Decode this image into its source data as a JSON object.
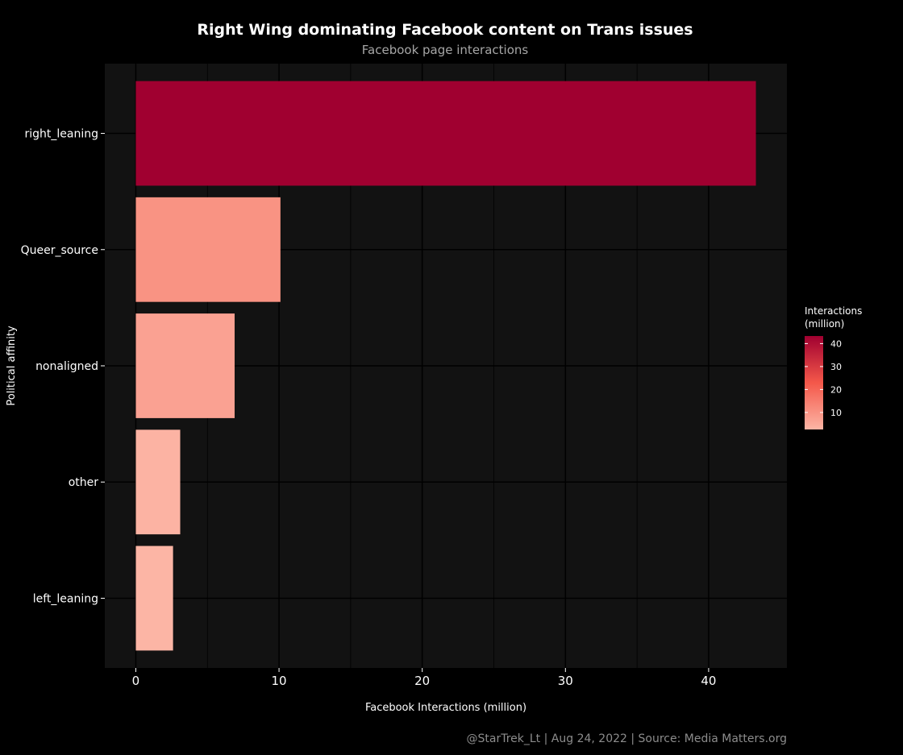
{
  "chart_data": {
    "type": "bar",
    "orientation": "horizontal",
    "title": "Right Wing dominating Facebook content on Trans issues",
    "subtitle": "Facebook page interactions",
    "xlabel": "Facebook Interactions (million)",
    "ylabel": "Political affinity",
    "caption": "@StarTrek_Lt | Aug 24, 2022 | Source: Media Matters.org",
    "categories": [
      "right_leaning",
      "Queer_source",
      "nonaligned",
      "other",
      "left_leaning"
    ],
    "values": [
      43.3,
      10.1,
      6.9,
      3.1,
      2.6
    ],
    "xlim": [
      -2.165,
      45.465
    ],
    "xticks": [
      0,
      10,
      20,
      30,
      40
    ],
    "grid": true,
    "legend": {
      "title_line1": "Interactions",
      "title_line2": "(million)",
      "ticks": [
        10,
        20,
        30,
        40
      ],
      "range": [
        2.6,
        43.3
      ],
      "placement": "right"
    },
    "colors": {
      "low": "#FCB5A5",
      "mid": "#F4584A",
      "high": "#A00030",
      "panel": "#121212",
      "background": "#000000"
    }
  }
}
